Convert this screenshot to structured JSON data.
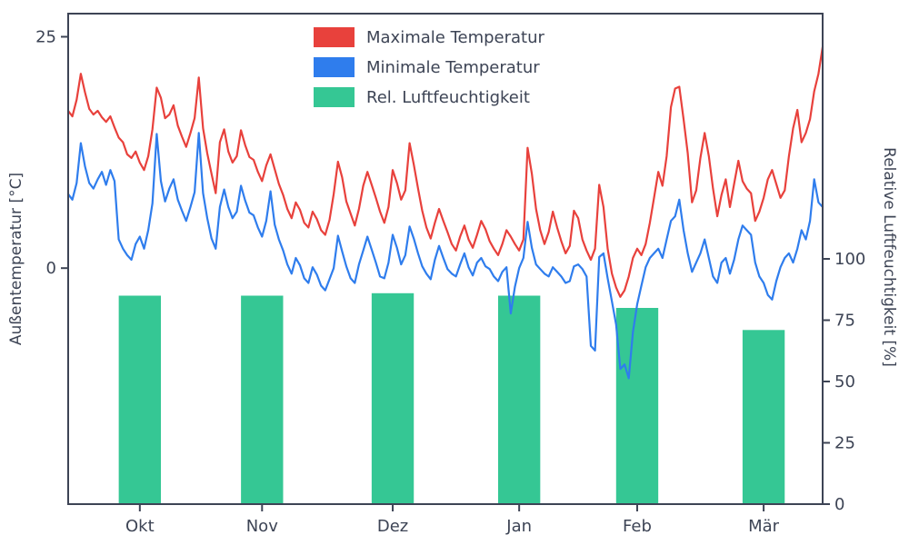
{
  "chart_data": {
    "type": "line+bar",
    "title": "",
    "ylabel_left": "Außentemperatur [°C]",
    "ylabel_right": "Relative Luftfeuchtigkeit [%]",
    "left_axis": {
      "ticks": [
        25,
        0
      ],
      "min": -25.5,
      "max": 27.5
    },
    "right_axis": {
      "ticks": [
        100,
        75,
        50,
        25,
        0
      ],
      "min": 0,
      "max": 200
    },
    "months": [
      {
        "label": "Okt",
        "day": 17,
        "humidity": 85
      },
      {
        "label": "Nov",
        "day": 46,
        "humidity": 85
      },
      {
        "label": "Dez",
        "day": 77,
        "humidity": 86
      },
      {
        "label": "Jan",
        "day": 107,
        "humidity": 85
      },
      {
        "label": "Feb",
        "day": 135,
        "humidity": 80
      },
      {
        "label": "Mär",
        "day": 165,
        "humidity": 71
      }
    ],
    "bar_width_days": 10,
    "bar_series": {
      "name": "Rel. Luftfeuchtigkeit",
      "color": "#35c794"
    },
    "series": [
      {
        "name": "Maximale Temperatur",
        "color": "#e8413c",
        "values": [
          17.0,
          16.4,
          18.2,
          21.0,
          19.0,
          17.2,
          16.6,
          17.0,
          16.3,
          15.8,
          16.4,
          15.2,
          14.1,
          13.6,
          12.3,
          11.9,
          12.6,
          11.4,
          10.6,
          12.1,
          15.0,
          19.5,
          18.4,
          16.2,
          16.6,
          17.6,
          15.4,
          14.2,
          13.1,
          14.6,
          16.2,
          20.6,
          15.1,
          12.4,
          10.2,
          8.1,
          13.6,
          15.0,
          12.6,
          11.4,
          12.1,
          14.9,
          13.3,
          12.0,
          11.7,
          10.4,
          9.4,
          11.1,
          12.3,
          10.7,
          9.1,
          7.9,
          6.4,
          5.4,
          7.1,
          6.3,
          4.9,
          4.4,
          6.1,
          5.3,
          4.1,
          3.6,
          5.2,
          8.0,
          11.5,
          9.8,
          7.2,
          5.9,
          4.6,
          6.4,
          8.9,
          10.4,
          9.0,
          7.6,
          6.1,
          4.9,
          6.6,
          10.6,
          9.2,
          7.4,
          8.4,
          13.5,
          11.2,
          8.6,
          6.2,
          4.4,
          3.2,
          4.9,
          6.4,
          5.1,
          3.9,
          2.6,
          1.9,
          3.4,
          4.6,
          3.1,
          2.2,
          3.6,
          5.1,
          4.2,
          2.9,
          2.1,
          1.4,
          2.6,
          4.1,
          3.4,
          2.6,
          1.9,
          3.1,
          13.0,
          10.2,
          6.4,
          4.1,
          2.6,
          3.9,
          6.1,
          4.4,
          2.9,
          1.6,
          2.4,
          6.2,
          5.4,
          3.1,
          1.9,
          0.9,
          2.1,
          9.0,
          6.6,
          2.1,
          -0.6,
          -2.1,
          -3.1,
          -2.4,
          -0.9,
          1.1,
          2.1,
          1.4,
          2.6,
          4.9,
          7.6,
          10.4,
          8.9,
          12.1,
          17.4,
          19.4,
          19.6,
          16.1,
          12.4,
          7.1,
          8.4,
          11.9,
          14.6,
          12.1,
          8.6,
          5.6,
          7.9,
          9.6,
          6.6,
          9.1,
          11.6,
          9.4,
          8.6,
          8.1,
          5.1,
          6.1,
          7.6,
          9.6,
          10.6,
          9.1,
          7.6,
          8.4,
          12.1,
          15.1,
          17.1,
          13.6,
          14.6,
          16.1,
          19.1,
          21.0,
          23.9
        ]
      },
      {
        "name": "Minimale Temperatur",
        "color": "#2f7ded",
        "values": [
          8.0,
          7.4,
          9.2,
          13.5,
          11.0,
          9.2,
          8.6,
          9.6,
          10.4,
          9.0,
          10.6,
          9.4,
          3.1,
          2.1,
          1.4,
          0.9,
          2.6,
          3.4,
          2.1,
          4.1,
          7.0,
          14.5,
          9.4,
          7.2,
          8.6,
          9.6,
          7.4,
          6.2,
          5.1,
          6.6,
          8.2,
          14.6,
          8.1,
          5.4,
          3.2,
          2.1,
          6.6,
          8.5,
          6.6,
          5.4,
          6.1,
          8.9,
          7.3,
          6.0,
          5.7,
          4.4,
          3.4,
          5.1,
          8.3,
          4.7,
          3.1,
          1.9,
          0.4,
          -0.6,
          1.1,
          0.3,
          -1.1,
          -1.6,
          0.1,
          -0.7,
          -1.9,
          -2.4,
          -1.2,
          0.0,
          3.5,
          1.8,
          0.2,
          -1.1,
          -1.6,
          0.4,
          1.9,
          3.4,
          2.0,
          0.6,
          -0.9,
          -1.1,
          0.6,
          3.6,
          2.2,
          0.4,
          1.4,
          4.5,
          3.2,
          1.6,
          0.2,
          -0.6,
          -1.2,
          0.9,
          2.4,
          1.1,
          -0.1,
          -0.6,
          -0.9,
          0.4,
          1.6,
          0.1,
          -0.8,
          0.6,
          1.1,
          0.2,
          -0.1,
          -0.9,
          -1.4,
          -0.4,
          0.1,
          -4.9,
          -2.0,
          0.0,
          1.1,
          5.0,
          2.2,
          0.4,
          -0.1,
          -0.6,
          -0.9,
          0.1,
          -0.4,
          -0.9,
          -1.6,
          -1.4,
          0.2,
          0.4,
          -0.1,
          -0.9,
          -8.4,
          -8.9,
          1.2,
          1.6,
          -1.1,
          -3.6,
          -6.1,
          -10.9,
          -10.4,
          -11.9,
          -6.9,
          -3.9,
          -1.9,
          0.1,
          1.1,
          1.6,
          2.1,
          1.1,
          3.1,
          5.1,
          5.6,
          7.4,
          4.1,
          1.6,
          -0.4,
          0.6,
          1.6,
          3.1,
          1.1,
          -0.9,
          -1.6,
          0.6,
          1.1,
          -0.6,
          0.9,
          3.1,
          4.6,
          4.1,
          3.6,
          0.6,
          -0.9,
          -1.6,
          -2.9,
          -3.4,
          -1.4,
          0.1,
          1.1,
          1.6,
          0.6,
          2.1,
          4.1,
          3.1,
          5.1,
          9.6,
          7.1,
          6.6
        ]
      }
    ],
    "legend": [
      {
        "label": "Maximale Temperatur",
        "color": "#e8413c"
      },
      {
        "label": "Minimale Temperatur",
        "color": "#2f7ded"
      },
      {
        "label": "Rel. Luftfeuchtigkeit",
        "color": "#35c794"
      }
    ],
    "style": {
      "frame_color": "#3d4455",
      "text_color": "#3d4455",
      "background": "#ffffff"
    }
  }
}
